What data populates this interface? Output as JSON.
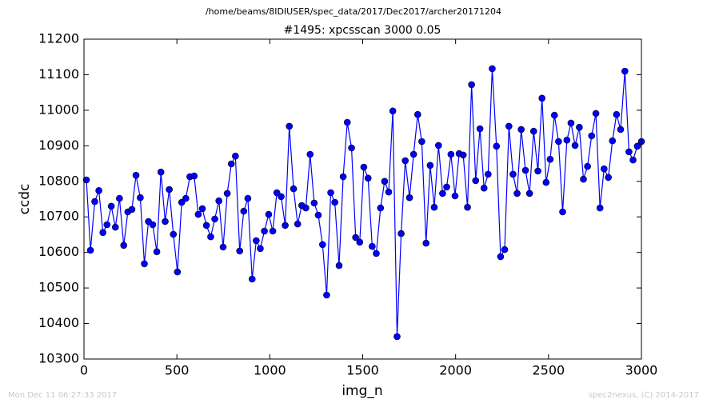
{
  "chart_data": {
    "type": "line",
    "suptitle": "/home/beams/8IDIUSER/spec_data/2017/Dec2017/archer20171204",
    "title": "#1495: xpcsscan 3000 0.05",
    "xlabel": "img_n",
    "ylabel": "ccdc",
    "annotations": [
      "Mon Dec 11 06:27:33 2017",
      "spec2nexus, (C) 2014-2017"
    ],
    "xlim": [
      0,
      3000
    ],
    "xticks": [
      0,
      500,
      1000,
      1500,
      2000,
      2500,
      3000
    ],
    "ylim": [
      10300,
      11200
    ],
    "yticks": [
      10300,
      10400,
      10500,
      10600,
      10700,
      10800,
      10900,
      11000,
      11100,
      11200
    ],
    "grid": false,
    "marker": "circle",
    "x": [
      13,
      35,
      58,
      80,
      102,
      124,
      147,
      169,
      191,
      214,
      236,
      258,
      280,
      303,
      325,
      347,
      370,
      392,
      414,
      437,
      459,
      481,
      503,
      526,
      548,
      570,
      593,
      615,
      637,
      659,
      682,
      704,
      726,
      749,
      771,
      793,
      815,
      838,
      860,
      882,
      905,
      927,
      949,
      971,
      994,
      1016,
      1038,
      1061,
      1083,
      1105,
      1128,
      1150,
      1172,
      1194,
      1217,
      1239,
      1261,
      1284,
      1306,
      1328,
      1350,
      1373,
      1395,
      1417,
      1440,
      1462,
      1484,
      1506,
      1529,
      1551,
      1573,
      1596,
      1618,
      1640,
      1662,
      1685,
      1707,
      1729,
      1752,
      1774,
      1796,
      1818,
      1841,
      1863,
      1885,
      1908,
      1930,
      1952,
      1975,
      1997,
      2019,
      2041,
      2064,
      2086,
      2108,
      2131,
      2153,
      2175,
      2197,
      2220,
      2242,
      2264,
      2287,
      2309,
      2331,
      2353,
      2376,
      2398,
      2420,
      2443,
      2465,
      2487,
      2509,
      2532,
      2554,
      2576,
      2599,
      2621,
      2643,
      2666,
      2688,
      2710,
      2732,
      2755,
      2777,
      2799,
      2822,
      2844,
      2866,
      2888,
      2911,
      2933,
      2955,
      2978,
      3000
    ],
    "series": [
      {
        "name": "ccdc",
        "color": "#0000ff",
        "values": [
          10804,
          10606,
          10743,
          10774,
          10656,
          10678,
          10730,
          10671,
          10752,
          10620,
          10714,
          10721,
          10817,
          10754,
          10568,
          10687,
          10678,
          10602,
          10826,
          10687,
          10777,
          10651,
          10545,
          10741,
          10752,
          10813,
          10815,
          10707,
          10723,
          10676,
          10644,
          10694,
          10745,
          10615,
          10766,
          10849,
          10871,
          10604,
          10716,
          10752,
          10525,
          10633,
          10611,
          10660,
          10707,
          10660,
          10768,
          10757,
          10676,
          10955,
          10779,
          10680,
          10732,
          10725,
          10876,
          10739,
          10705,
          10622,
          10480,
          10768,
          10741,
          10563,
          10813,
          10966,
          10894,
          10642,
          10629,
          10840,
          10809,
          10617,
          10597,
          10725,
          10800,
          10770,
          10998,
          10363,
          10653,
          10858,
          10754,
          10876,
          10988,
          10912,
          10626,
          10845,
          10727,
          10901,
          10766,
          10784,
          10876,
          10759,
          10878,
          10874,
          10727,
          11072,
          10802,
          10948,
          10781,
          10820,
          11117,
          10899,
          10588,
          10608,
          10955,
          10820,
          10766,
          10946,
          10831,
          10766,
          10941,
          10829,
          11034,
          10797,
          10862,
          10986,
          10912,
          10714,
          10916,
          10964,
          10901,
          10952,
          10806,
          10842,
          10928,
          10991,
          10725,
          10835,
          10811,
          10914,
          10988,
          10946,
          11110,
          10883,
          10860,
          10899,
          10912
        ]
      }
    ]
  }
}
